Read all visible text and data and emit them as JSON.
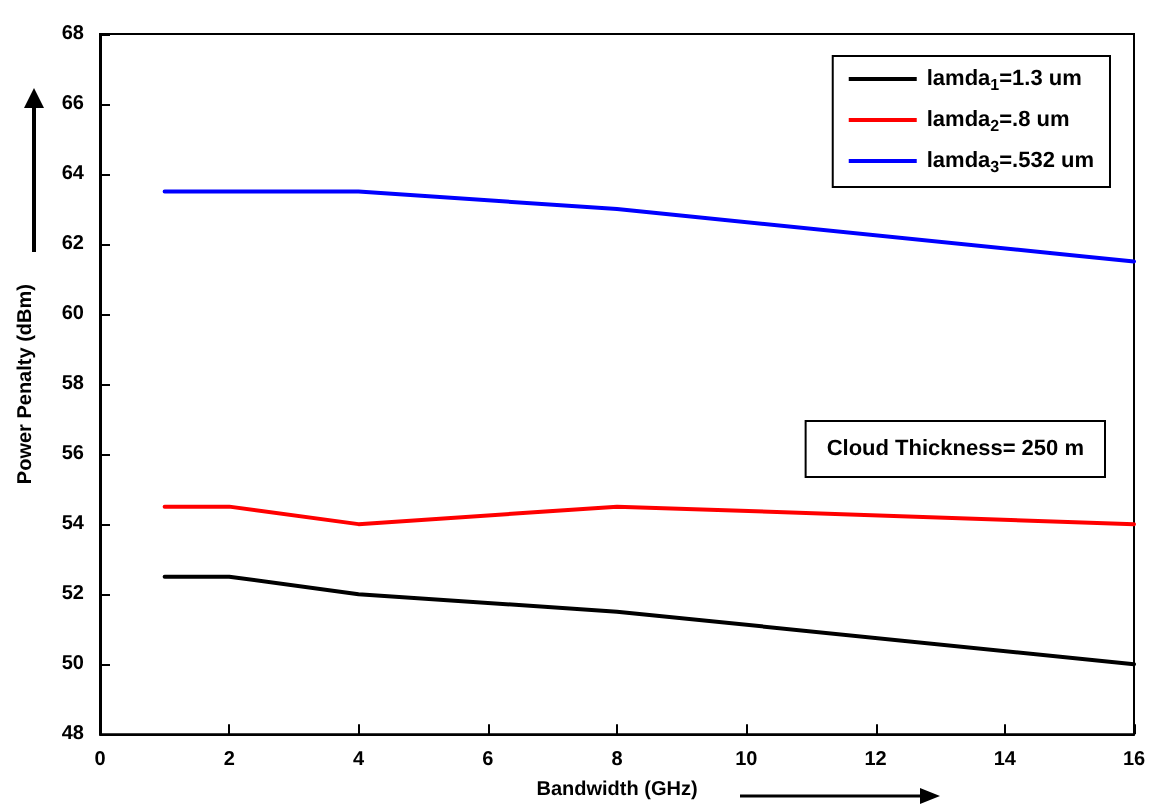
{
  "chart_data": {
    "type": "line",
    "xlabel": "Bandwidth (GHz)",
    "ylabel": "Power Penalty (dBm)",
    "x": [
      1,
      2,
      4,
      8,
      16
    ],
    "series": [
      {
        "name": "lamda$_{1}$=1.3 um",
        "color": "#000000",
        "values": [
          52.5,
          52.5,
          52,
          51.5,
          50
        ]
      },
      {
        "name": "lamda$_{2}$=.8 um",
        "color": "#ff0000",
        "values": [
          54.5,
          54.5,
          54,
          54.5,
          54
        ]
      },
      {
        "name": "lamda$_{3}$=.532 um",
        "color": "#0000ff",
        "values": [
          63.5,
          63.5,
          63.5,
          63,
          61.5
        ]
      }
    ],
    "annotations": [
      "Cloud Thickness= 250 m"
    ],
    "xlim": [
      0,
      16
    ],
    "xticks": [
      0,
      2,
      4,
      6,
      8,
      10,
      12,
      14,
      16
    ],
    "ylim": [
      48,
      68
    ],
    "yticks": [
      48,
      50,
      52,
      54,
      56,
      58,
      60,
      62,
      64,
      66,
      68
    ],
    "grid": false,
    "legend": "top right",
    "marker": "none",
    "line_style": "solid"
  }
}
